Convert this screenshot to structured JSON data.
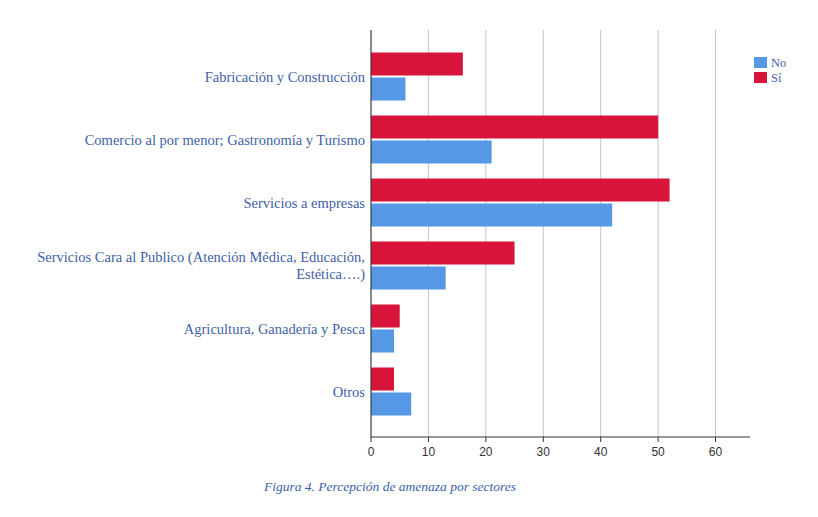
{
  "chart_data": {
    "type": "bar",
    "orientation": "horizontal",
    "title": "Figura 4. Percepción de amenaza por sectores",
    "categories": [
      "Fabricación y Construcción",
      "Comercio al por menor; Gastronomía y Turismo",
      "Servicios a empresas",
      "Servicios Cara al Publico (Atención Médica, Educación, Estética….)",
      "Agricultura, Ganadería y Pesca",
      "Otros"
    ],
    "series": [
      {
        "name": "No",
        "color": "#5598e6",
        "values": [
          6,
          21,
          42,
          13,
          4,
          7
        ]
      },
      {
        "name": "Sí",
        "color": "#d8143a",
        "values": [
          16,
          50,
          52,
          25,
          5,
          4
        ]
      }
    ],
    "xlim": [
      0,
      66
    ],
    "xticks": [
      0,
      10,
      20,
      30,
      40,
      50,
      60
    ],
    "grid": true,
    "legend": "top-right"
  }
}
